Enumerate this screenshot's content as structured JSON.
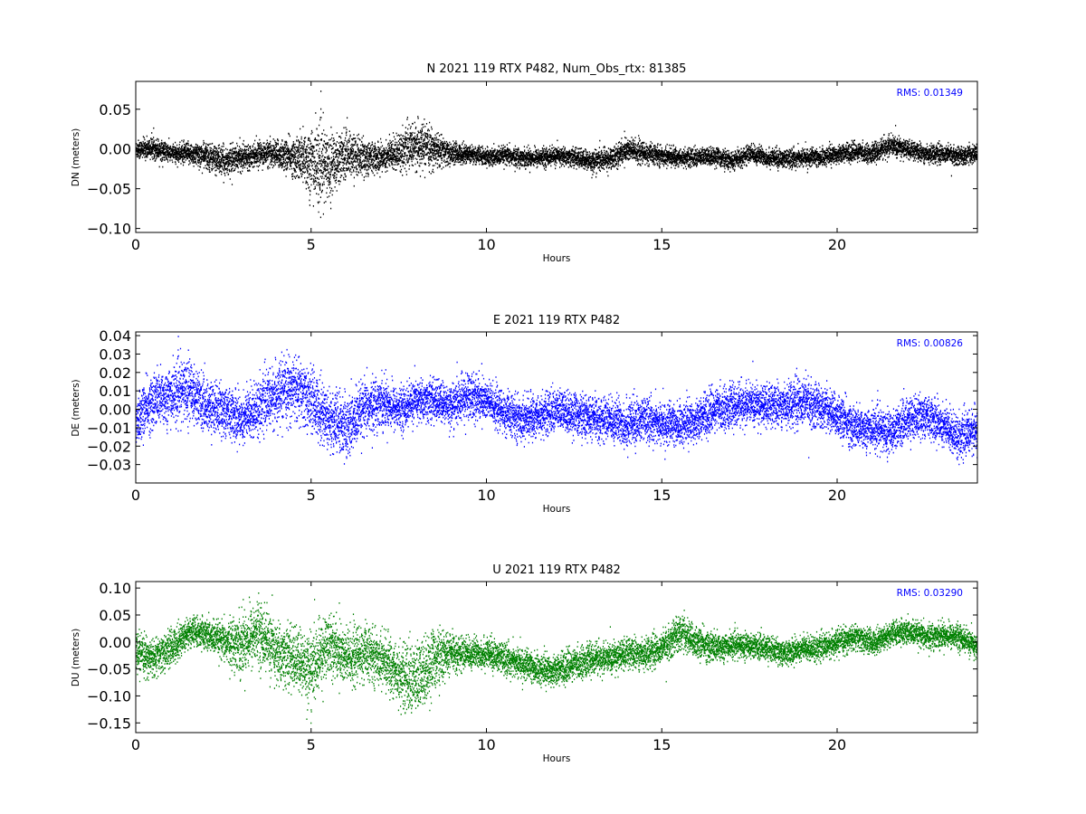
{
  "chart_data": [
    {
      "type": "scatter",
      "title": "N 2021 119 RTX  P482, Num_Obs_rtx: 81385",
      "xlabel": "Hours",
      "ylabel": "DN (meters)",
      "rms_label": "RMS:  0.01349",
      "color": "#000000",
      "xlim": [
        0,
        24
      ],
      "ylim": [
        -0.105,
        0.085
      ],
      "xticks": [
        0,
        5,
        10,
        15,
        20
      ],
      "xtick_labels": [
        "0",
        "5",
        "10",
        "15",
        "20"
      ],
      "yticks": [
        0.05,
        0.0,
        -0.05,
        -0.1
      ],
      "ytick_labels": [
        "0.05",
        "0.00",
        "−0.05",
        "−0.10"
      ],
      "series": [
        {
          "x": [
            0,
            0.5,
            1,
            1.5,
            2,
            2.5,
            3,
            3.5,
            4,
            4.5,
            5,
            5.25,
            5.5,
            6,
            6.5,
            7,
            7.5,
            8,
            8.5,
            9,
            9.5,
            10,
            10.5,
            11,
            11.5,
            12,
            12.5,
            13,
            13.5,
            14,
            14.5,
            15,
            15.5,
            16,
            16.5,
            17,
            17.5,
            18,
            18.5,
            19,
            19.5,
            20,
            20.5,
            21,
            21.5,
            22,
            22.5,
            23,
            23.5,
            24
          ],
          "y": [
            0.0,
            0.002,
            -0.005,
            -0.005,
            -0.008,
            -0.015,
            -0.01,
            -0.005,
            -0.005,
            -0.01,
            -0.015,
            -0.02,
            -0.02,
            -0.005,
            -0.01,
            -0.01,
            -0.002,
            0.005,
            0.0,
            -0.005,
            -0.005,
            -0.01,
            -0.008,
            -0.01,
            -0.01,
            -0.008,
            -0.01,
            -0.015,
            -0.012,
            0.0,
            -0.005,
            -0.008,
            -0.01,
            -0.01,
            -0.008,
            -0.015,
            -0.005,
            -0.01,
            -0.012,
            -0.01,
            -0.01,
            -0.005,
            -0.003,
            -0.005,
            0.005,
            0.0,
            -0.005,
            -0.005,
            -0.008,
            -0.005
          ],
          "spread": [
            0.01,
            0.012,
            0.01,
            0.012,
            0.015,
            0.016,
            0.014,
            0.012,
            0.015,
            0.02,
            0.04,
            0.045,
            0.035,
            0.025,
            0.02,
            0.015,
            0.02,
            0.025,
            0.02,
            0.012,
            0.01,
            0.01,
            0.01,
            0.01,
            0.01,
            0.01,
            0.01,
            0.012,
            0.012,
            0.014,
            0.012,
            0.01,
            0.01,
            0.01,
            0.01,
            0.01,
            0.01,
            0.01,
            0.01,
            0.01,
            0.01,
            0.01,
            0.01,
            0.01,
            0.012,
            0.01,
            0.01,
            0.01,
            0.01,
            0.01
          ]
        }
      ]
    },
    {
      "type": "scatter",
      "title": "E 2021 119 RTX  P482",
      "xlabel": "Hours",
      "ylabel": "DE (meters)",
      "rms_label": "RMS:  0.00826",
      "color": "#0000ff",
      "xlim": [
        0,
        24
      ],
      "ylim": [
        -0.04,
        0.042
      ],
      "xticks": [
        0,
        5,
        10,
        15,
        20
      ],
      "xtick_labels": [
        "0",
        "5",
        "10",
        "15",
        "20"
      ],
      "yticks": [
        0.04,
        0.03,
        0.02,
        0.01,
        0.0,
        -0.01,
        -0.02,
        -0.03
      ],
      "ytick_labels": [
        "0.04",
        "0.03",
        "0.02",
        "0.01",
        "0.00",
        "−0.01",
        "−0.02",
        "−0.03"
      ],
      "series": [
        {
          "x": [
            0,
            0.5,
            1,
            1.5,
            2,
            2.5,
            3,
            3.5,
            4,
            4.5,
            5,
            5.5,
            6,
            6.5,
            7,
            7.5,
            8,
            8.5,
            9,
            9.5,
            10,
            10.5,
            11,
            11.5,
            12,
            12.5,
            13,
            13.5,
            14,
            14.5,
            15,
            15.5,
            16,
            16.5,
            17,
            17.5,
            18,
            18.5,
            19,
            19.5,
            20,
            20.5,
            21,
            21.5,
            22,
            22.5,
            23,
            23.5,
            24
          ],
          "y": [
            -0.005,
            0.005,
            0.008,
            0.012,
            0.002,
            0.0,
            -0.005,
            0.002,
            0.008,
            0.012,
            0.005,
            -0.005,
            -0.01,
            0.0,
            0.005,
            0.0,
            0.005,
            0.005,
            0.002,
            0.008,
            0.005,
            -0.002,
            -0.005,
            -0.003,
            0.0,
            -0.002,
            -0.005,
            -0.005,
            -0.008,
            -0.005,
            -0.008,
            -0.008,
            -0.005,
            0.0,
            0.002,
            0.003,
            0.002,
            0.003,
            0.005,
            0.002,
            -0.003,
            -0.01,
            -0.01,
            -0.012,
            -0.005,
            -0.003,
            -0.008,
            -0.015,
            -0.01
          ],
          "spread": [
            0.012,
            0.013,
            0.014,
            0.015,
            0.012,
            0.012,
            0.012,
            0.013,
            0.014,
            0.015,
            0.015,
            0.015,
            0.015,
            0.013,
            0.012,
            0.01,
            0.01,
            0.01,
            0.01,
            0.012,
            0.01,
            0.01,
            0.01,
            0.01,
            0.01,
            0.01,
            0.01,
            0.01,
            0.012,
            0.01,
            0.01,
            0.01,
            0.01,
            0.01,
            0.01,
            0.01,
            0.01,
            0.01,
            0.012,
            0.01,
            0.01,
            0.01,
            0.01,
            0.01,
            0.01,
            0.01,
            0.01,
            0.01,
            0.01
          ]
        }
      ]
    },
    {
      "type": "scatter",
      "title": "U 2021 119 RTX  P482",
      "xlabel": "Hours",
      "ylabel": "DU (meters)",
      "rms_label": "RMS:  0.03290",
      "color": "#008000",
      "xlim": [
        0,
        24
      ],
      "ylim": [
        -0.168,
        0.112
      ],
      "xticks": [
        0,
        5,
        10,
        15,
        20
      ],
      "xtick_labels": [
        "0",
        "5",
        "10",
        "15",
        "20"
      ],
      "yticks": [
        0.1,
        0.05,
        0.0,
        -0.05,
        -0.1,
        -0.15
      ],
      "ytick_labels": [
        "0.10",
        "0.05",
        "0.00",
        "−0.05",
        "−0.10",
        "−0.15"
      ],
      "series": [
        {
          "x": [
            0,
            0.5,
            1,
            1.5,
            2,
            2.5,
            3,
            3.5,
            4,
            4.5,
            5,
            5.5,
            6,
            6.5,
            7,
            7.5,
            8,
            8.5,
            9,
            9.5,
            10,
            10.5,
            11,
            11.5,
            12,
            12.5,
            13,
            13.5,
            14,
            14.5,
            15,
            15.5,
            16,
            16.5,
            17,
            17.5,
            18,
            18.5,
            19,
            19.5,
            20,
            20.5,
            21,
            21.5,
            22,
            22.5,
            23,
            23.5,
            24
          ],
          "y": [
            -0.02,
            -0.03,
            -0.01,
            0.02,
            0.015,
            0.0,
            0.0,
            0.02,
            -0.02,
            -0.03,
            -0.05,
            0.0,
            -0.03,
            -0.02,
            -0.03,
            -0.06,
            -0.07,
            -0.03,
            -0.02,
            -0.02,
            -0.02,
            -0.03,
            -0.04,
            -0.05,
            -0.05,
            -0.04,
            -0.03,
            -0.03,
            -0.02,
            -0.02,
            -0.01,
            0.02,
            0.0,
            -0.01,
            -0.005,
            -0.005,
            -0.01,
            -0.02,
            -0.01,
            -0.01,
            0.0,
            0.01,
            0.0,
            0.015,
            0.02,
            0.01,
            0.015,
            0.01,
            -0.01
          ],
          "spread": [
            0.03,
            0.03,
            0.03,
            0.025,
            0.025,
            0.03,
            0.05,
            0.05,
            0.05,
            0.05,
            0.06,
            0.05,
            0.05,
            0.045,
            0.04,
            0.05,
            0.06,
            0.05,
            0.03,
            0.025,
            0.025,
            0.025,
            0.025,
            0.025,
            0.025,
            0.025,
            0.025,
            0.025,
            0.025,
            0.025,
            0.025,
            0.03,
            0.025,
            0.025,
            0.02,
            0.02,
            0.02,
            0.02,
            0.02,
            0.02,
            0.02,
            0.02,
            0.02,
            0.02,
            0.02,
            0.02,
            0.02,
            0.02,
            0.02
          ]
        }
      ]
    }
  ]
}
